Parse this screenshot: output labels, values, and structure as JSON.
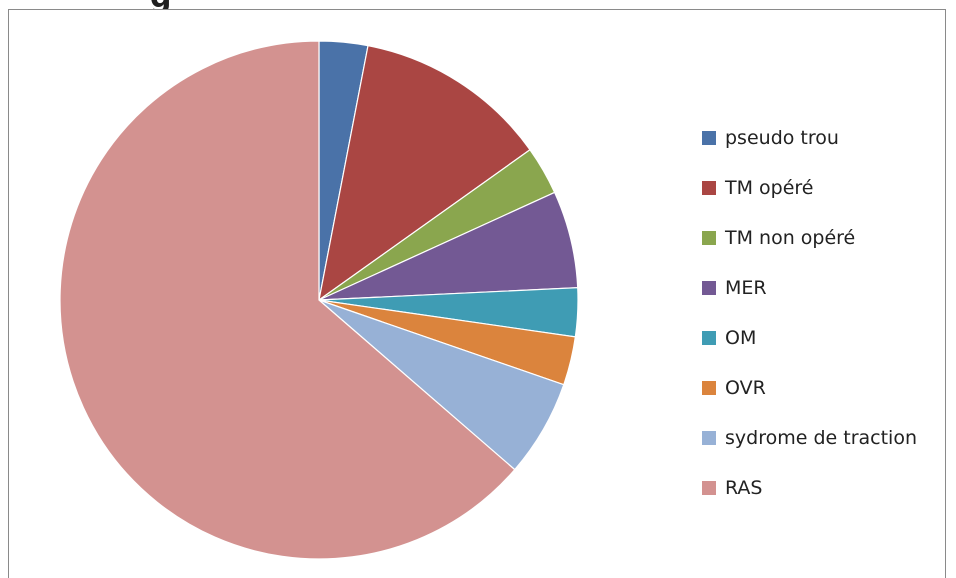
{
  "header": {
    "title_fragment": "g"
  },
  "chart_data": {
    "type": "pie",
    "title": "",
    "legend_position": "right",
    "slices": [
      {
        "label": "pseudo trou",
        "value": 1,
        "color": "#4a72a8"
      },
      {
        "label": "TM opéré",
        "value": 4,
        "color": "#aa4643"
      },
      {
        "label": "TM non opéré",
        "value": 1,
        "color": "#8aa64e"
      },
      {
        "label": "MER",
        "value": 2,
        "color": "#735994"
      },
      {
        "label": "OM",
        "value": 1,
        "color": "#3f9cb4"
      },
      {
        "label": "OVR",
        "value": 1,
        "color": "#db843d"
      },
      {
        "label": "sydrome de traction",
        "value": 2,
        "color": "#97b1d6"
      },
      {
        "label": "RAS",
        "value": 21,
        "color": "#d39290"
      }
    ]
  }
}
